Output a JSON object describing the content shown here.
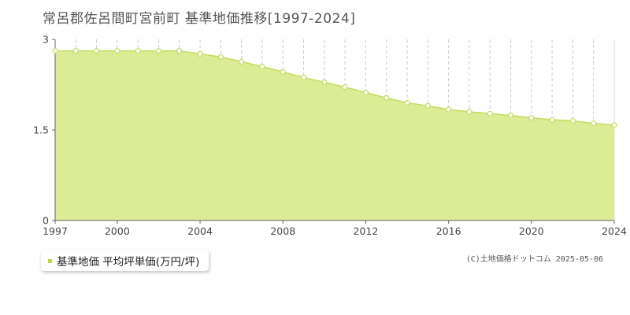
{
  "title": "常呂郡佐呂間町宮前町 基準地価推移[1997-2024]",
  "credit": "(C)土地価格ドットコム 2025-05-06",
  "colors": {
    "area_fill": "#dcec95",
    "line": "#c4dc60",
    "marker_fill": "#ffffff",
    "legend_swatch": "#b8d84a"
  },
  "chart_data": {
    "type": "area",
    "x": [
      1997,
      1998,
      1999,
      2000,
      2001,
      2002,
      2003,
      2004,
      2005,
      2006,
      2007,
      2008,
      2009,
      2010,
      2011,
      2012,
      2013,
      2014,
      2015,
      2016,
      2017,
      2018,
      2019,
      2020,
      2021,
      2022,
      2023,
      2024
    ],
    "series": [
      {
        "name": "基準地価 平均坪単価(万円/坪)",
        "values": [
          2.81,
          2.81,
          2.81,
          2.81,
          2.81,
          2.81,
          2.81,
          2.76,
          2.71,
          2.63,
          2.55,
          2.46,
          2.37,
          2.29,
          2.21,
          2.12,
          2.03,
          1.95,
          1.9,
          1.84,
          1.8,
          1.77,
          1.74,
          1.7,
          1.67,
          1.65,
          1.61,
          1.58
        ]
      }
    ],
    "xlim": [
      1997,
      2024
    ],
    "ylim": [
      0,
      3
    ],
    "xticks": [
      1997,
      2000,
      2004,
      2008,
      2012,
      2016,
      2020,
      2024
    ],
    "yticks": [
      0,
      1.5,
      3
    ],
    "ytick_labels": [
      "0",
      "1.5",
      "3"
    ],
    "grid": true,
    "legend_position": "bottom-left"
  }
}
